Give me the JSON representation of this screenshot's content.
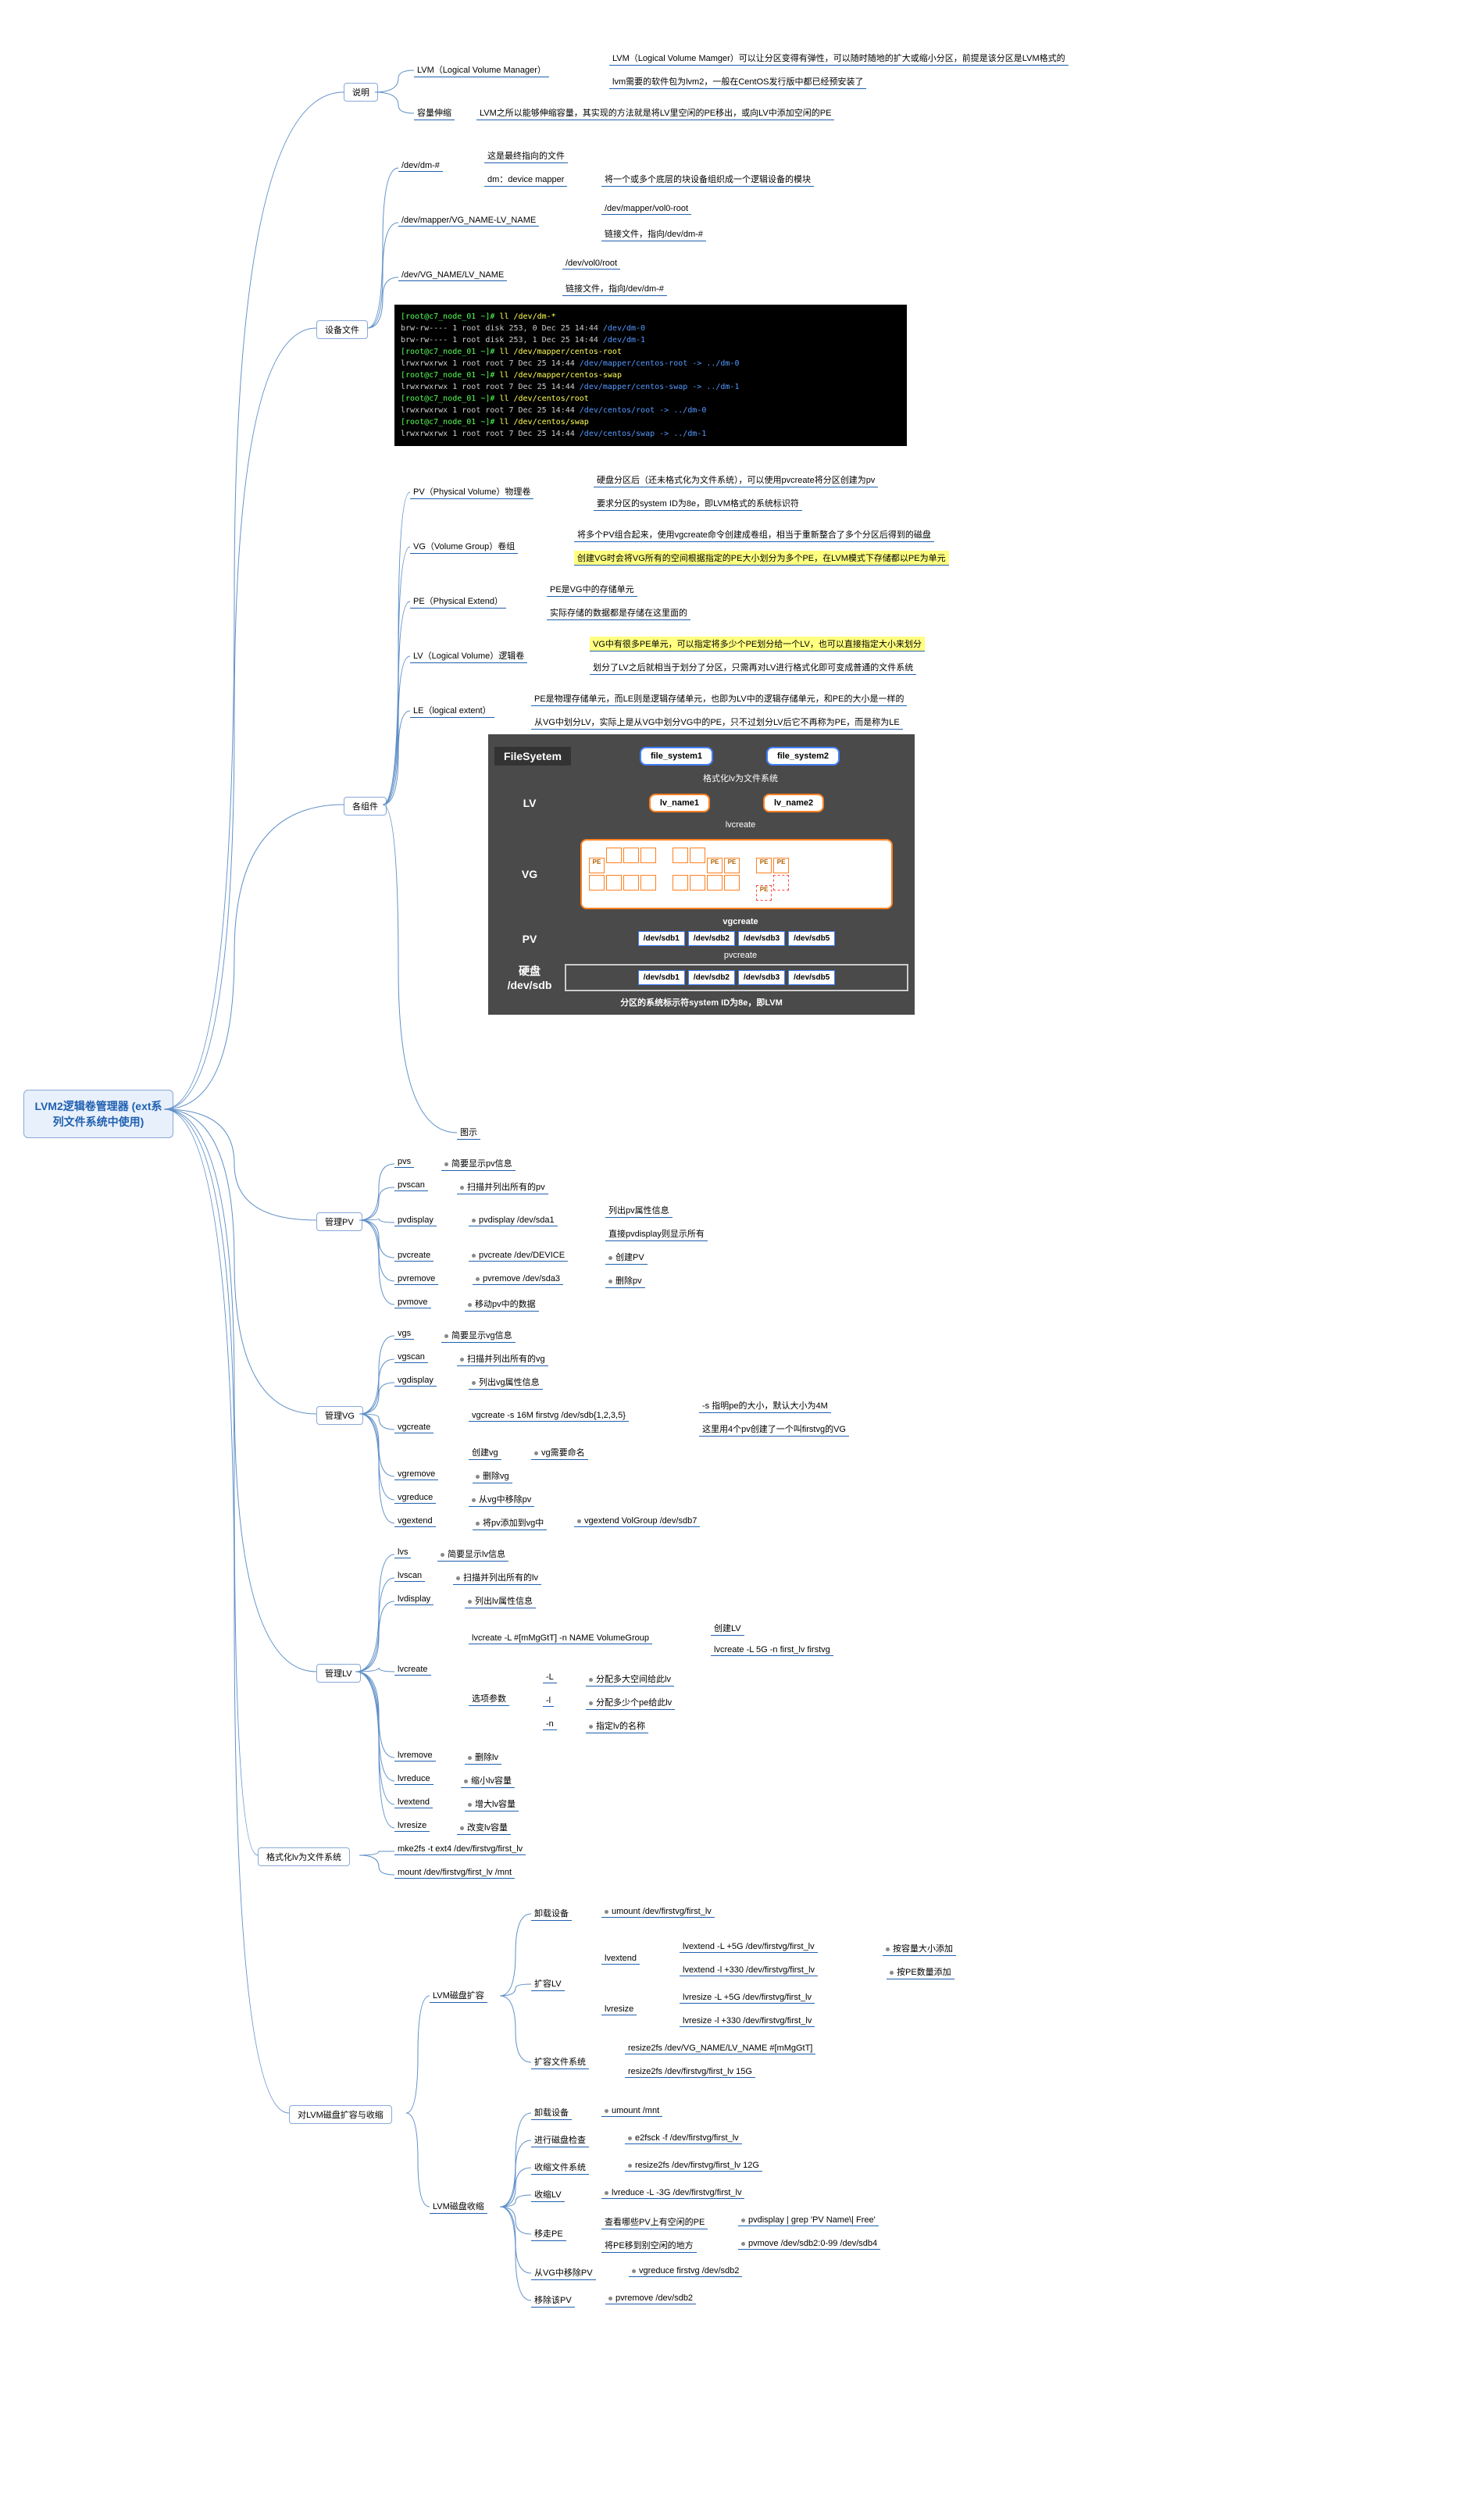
{
  "root": "LVM2逻辑卷管理器\n(ext系列文件系统中使用)",
  "main": [
    "说明",
    "设备文件",
    "各组件",
    "管理PV",
    "管理VG",
    "管理LV",
    "格式化lv为文件系统",
    "对LVM磁盘扩容与收缩"
  ],
  "s1": {
    "a": "LVM（Logical Volume Manager）",
    "a1": "LVM（Logical Volume Mamger）可以让分区变得有弹性，可以随时随地的扩大或缩小分区，前提是该分区是LVM格式的",
    "a2": "lvm需要的软件包为lvm2，一般在CentOS发行版中都已经预安装了",
    "b": "容量伸缩",
    "b1": "LVM之所以能够伸缩容量，其实现的方法就是将LV里空闲的PE移出，或向LV中添加空闲的PE"
  },
  "s2": {
    "a": "/dev/dm-#",
    "a1": "这是最终指向的文件",
    "a2": "dm：device mapper",
    "a3": "将一个或多个底层的块设备组织成一个逻辑设备的模块",
    "b": "/dev/mapper/VG_NAME-LV_NAME",
    "b1": "/dev/mapper/vol0-root",
    "b2": "链接文件，指向/dev/dm-#",
    "c": "/dev/VG_NAME/LV_NAME",
    "c1": "/dev/vol0/root",
    "c2": "链接文件，指向/dev/dm-#"
  },
  "term": [
    {
      "p": "[root@c7_node_01 ~]# ",
      "c": "ll /dev/dm-*"
    },
    {
      "t": "brw-rw---- 1 root disk 253, 0 Dec 25 14:44 ",
      "f": "/dev/dm-0"
    },
    {
      "t": "brw-rw---- 1 root disk 253, 1 Dec 25 14:44 ",
      "f": "/dev/dm-1"
    },
    {
      "p": "[root@c7_node_01 ~]# ",
      "c": "ll /dev/mapper/centos-root"
    },
    {
      "t": "lrwxrwxrwx 1 root root 7 Dec 25 14:44 ",
      "f": "/dev/mapper/centos-root",
      "l": " -> ../dm-0"
    },
    {
      "p": "[root@c7_node_01 ~]# ",
      "c": "ll /dev/mapper/centos-swap"
    },
    {
      "t": "lrwxrwxrwx 1 root root 7 Dec 25 14:44 ",
      "f": "/dev/mapper/centos-swap",
      "l": " -> ../dm-1"
    },
    {
      "p": "[root@c7_node_01 ~]# ",
      "c": "ll /dev/centos/root"
    },
    {
      "t": "lrwxrwxrwx 1 root root 7 Dec 25 14:44 ",
      "f": "/dev/centos/root",
      "l": " -> ../dm-0"
    },
    {
      "p": "[root@c7_node_01 ~]# ",
      "c": "ll /dev/centos/swap"
    },
    {
      "t": "lrwxrwxrwx 1 root root 7 Dec 25 14:44 ",
      "f": "/dev/centos/swap",
      "l": " -> ../dm-1"
    }
  ],
  "s3": {
    "pv": "PV（Physical Volume）物理卷",
    "pv1": "硬盘分区后（还未格式化为文件系统），可以使用pvcreate将分区创建为pv",
    "pv2": "要求分区的system ID为8e，即LVM格式的系统标识符",
    "vg": "VG（Volume Group）卷组",
    "vg1": "将多个PV组合起来，使用vgcreate命令创建成卷组，相当于重新整合了多个分区后得到的磁盘",
    "vg2": "创建VG时会将VG所有的空间根据指定的PE大小划分为多个PE，在LVM模式下存储都以PE为单元",
    "pe": "PE（Physical Extend）",
    "pe1": "PE是VG中的存储单元",
    "pe2": "实际存储的数据都是存储在这里面的",
    "lv": "LV（Logical Volume）逻辑卷",
    "lv1": "VG中有很多PE单元，可以指定将多少个PE划分给一个LV，也可以直接指定大小来划分",
    "lv2": "划分了LV之后就相当于划分了分区，只需再对LV进行格式化即可变成普通的文件系统",
    "le": "LE（logical extent）",
    "le1": "PE是物理存储单元，而LE则是逻辑存储单元，也即为LV中的逻辑存储单元，和PE的大小是一样的",
    "le2": "从VG中划分LV，实际上是从VG中划分VG中的PE，只不过划分LV后它不再称为PE，而是称为LE",
    "img": "图示"
  },
  "diag": {
    "fs": "FileSyetem",
    "f1": "file_system1",
    "f2": "file_system2",
    "fmt": "格式化lv为文件系统",
    "lv": "LV",
    "l1": "lv_name1",
    "l2": "lv_name2",
    "lvc": "lvcreate",
    "vg": "VG",
    "pe": "PE",
    "vgc": "vgcreate",
    "pv": "PV",
    "pvc": "pvcreate",
    "hd": "硬盘\n/dev/sdb",
    "d": [
      "/dev/sdb1",
      "/dev/sdb2",
      "/dev/sdb3",
      "/dev/sdb5"
    ],
    "bottom": "分区的系统标示符system ID为8e，即LVM"
  },
  "pv": {
    "pvs": "pvs",
    "pvs1": "简要显示pv信息",
    "pvscan": "pvscan",
    "pvscan1": "扫描并列出所有的pv",
    "pvdisplay": "pvdisplay",
    "pvd1": "pvdisplay  /dev/sda1",
    "pvd1a": "列出pv属性信息",
    "pvd1b": "直接pvdisplay则显示所有",
    "pvcreate": "pvcreate",
    "pvc1": "pvcreate  /dev/DEVICE",
    "pvc2": "创建PV",
    "pvremove": "pvremove",
    "pvr1": "pvremove  /dev/sda3",
    "pvr2": "删除pv",
    "pvmove": "pvmove",
    "pvm1": "移动pv中的数据"
  },
  "vg": {
    "vgs": "vgs",
    "vgs1": "简要显示vg信息",
    "vgscan": "vgscan",
    "vgscan1": "扫描并列出所有的vg",
    "vgdisplay": "vgdisplay",
    "vgd1": "列出vg属性信息",
    "vgcreate": "vgcreate",
    "vgc1": "vgcreate -s 16M firstvg /dev/sdb{1,2,3,5}",
    "vgc1a": "-s 指明pe的大小，默认大小为4M",
    "vgc1b": "这里用4个pv创建了一个叫firstvg的VG",
    "vgc2": "创建vg",
    "vgc3": "vg需要命名",
    "vgremove": "vgremove",
    "vgr1": "删除vg",
    "vgreduce": "vgreduce",
    "vgre1": "从vg中移除pv",
    "vgextend": "vgextend",
    "vge1": "将pv添加到vg中",
    "vge2": "vgextend VolGroup /dev/sdb7"
  },
  "lv": {
    "lvs": "lvs",
    "lvs1": "简要显示lv信息",
    "lvscan": "lvscan",
    "lvscan1": "扫描并列出所有的lv",
    "lvdisplay": "lvdisplay",
    "lvd1": "列出lv属性信息",
    "lvcreate": "lvcreate",
    "lvc1": "lvcreate -L #[mMgGtT] -n NAME VolumeGroup",
    "lvc1a": "创建LV",
    "lvc1b": "lvcreate  -L  5G  -n  first_lv  firstvg",
    "opt": "选项参数",
    "L": "-L",
    "L1": "分配多大空间给此lv",
    "l": "-l",
    "l1": "分配多少个pe给此lv",
    "n": "-n",
    "n1": "指定lv的名称",
    "lvremove": "lvremove",
    "lvr1": "删除lv",
    "lvreduce": "lvreduce",
    "lvre1": "缩小lv容量",
    "lvextend": "lvextend",
    "lve1": "增大lv容量",
    "lvresize": "lvresize",
    "lvrs1": "改变lv容量"
  },
  "fmt": {
    "a": "mke2fs  -t  ext4  /dev/firstvg/first_lv",
    "b": "mount  /dev/firstvg/first_lv  /mnt"
  },
  "rs": {
    "ex": "LVM磁盘扩容",
    "ex1": "卸载设备",
    "ex1a": "umount /dev/firstvg/first_lv",
    "ex2": "扩容LV",
    "ex2a": "lvextend",
    "ex2a1": "lvextend  -L  +5G  /dev/firstvg/first_lv",
    "ex2a1n": "按容量大小添加",
    "ex2a2": "lvextend  -l  +330  /dev/firstvg/first_lv",
    "ex2a2n": "按PE数量添加",
    "ex2b": "lvresize",
    "ex2b1": "lvresize  -L  +5G  /dev/firstvg/first_lv",
    "ex2b2": "lvresize  -l  +330  /dev/firstvg/first_lv",
    "ex3": "扩容文件系统",
    "ex3a": "resize2fs  /dev/VG_NAME/LV_NAME  #[mMgGtT]",
    "ex3b": "resize2fs  /dev/firstvg/first_lv  15G",
    "sh": "LVM磁盘收缩",
    "sh1": "卸载设备",
    "sh1a": "umount /mnt",
    "sh2": "进行磁盘检查",
    "sh2a": "e2fsck  -f  /dev/firstvg/first_lv",
    "sh3": "收缩文件系统",
    "sh3a": "resize2fs  /dev/firstvg/first_lv  12G",
    "sh4": "收缩LV",
    "sh4a": "lvreduce  -L  -3G  /dev/firstvg/first_lv",
    "sh5": "移走PE",
    "sh5a": "查看哪些PV上有空闲的PE",
    "sh5a1": "pvdisplay | grep 'PV Name\\| Free'",
    "sh5b": "将PE移到别空闲的地方",
    "sh5b1": "pvmove  /dev/sdb2:0-99  /dev/sdb4",
    "sh6": "从VG中移除PV",
    "sh6a": "vgreduce firstvg /dev/sdb2",
    "sh7": "移除该PV",
    "sh7a": "pvremove /dev/sdb2"
  },
  "colors": {
    "line": "#6090c8",
    "root_border": "#88a8d8",
    "root_bg": "#e8f0fb",
    "root_text": "#2060b0",
    "hl": "#ffff80"
  }
}
